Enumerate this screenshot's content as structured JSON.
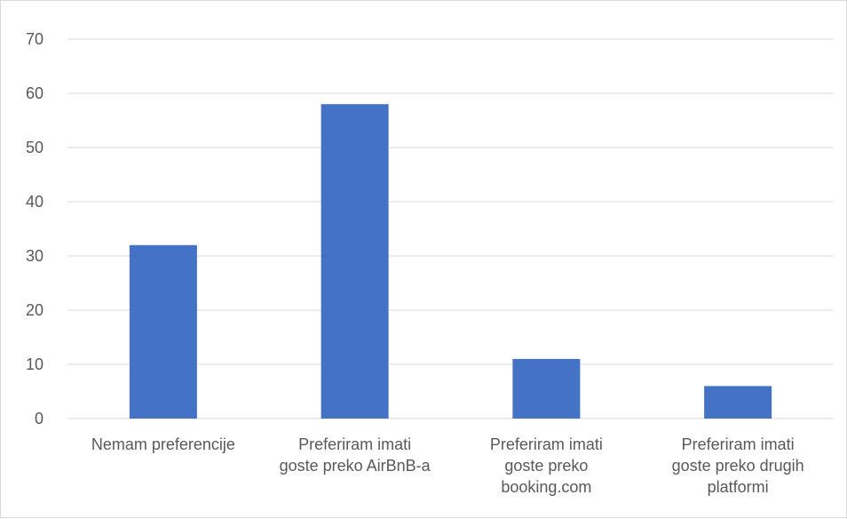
{
  "chart_data": {
    "type": "bar",
    "title": "",
    "xlabel": "",
    "ylabel": "",
    "categories": [
      [
        "Nemam preferencije"
      ],
      [
        "Preferiram imati",
        "goste preko AirBnB-a"
      ],
      [
        "Preferiram imati",
        "goste preko",
        "booking.com"
      ],
      [
        "Preferiram imati",
        "goste preko drugih",
        "platformi"
      ]
    ],
    "values": [
      32,
      58,
      11,
      6
    ],
    "ylim": [
      0,
      70
    ],
    "yticks": [
      0,
      10,
      20,
      30,
      40,
      50,
      60,
      70
    ],
    "grid": true,
    "legend": "none",
    "colors": {
      "bar": "#4472C4",
      "grid": "#D9D9D9",
      "text": "#595959"
    }
  }
}
